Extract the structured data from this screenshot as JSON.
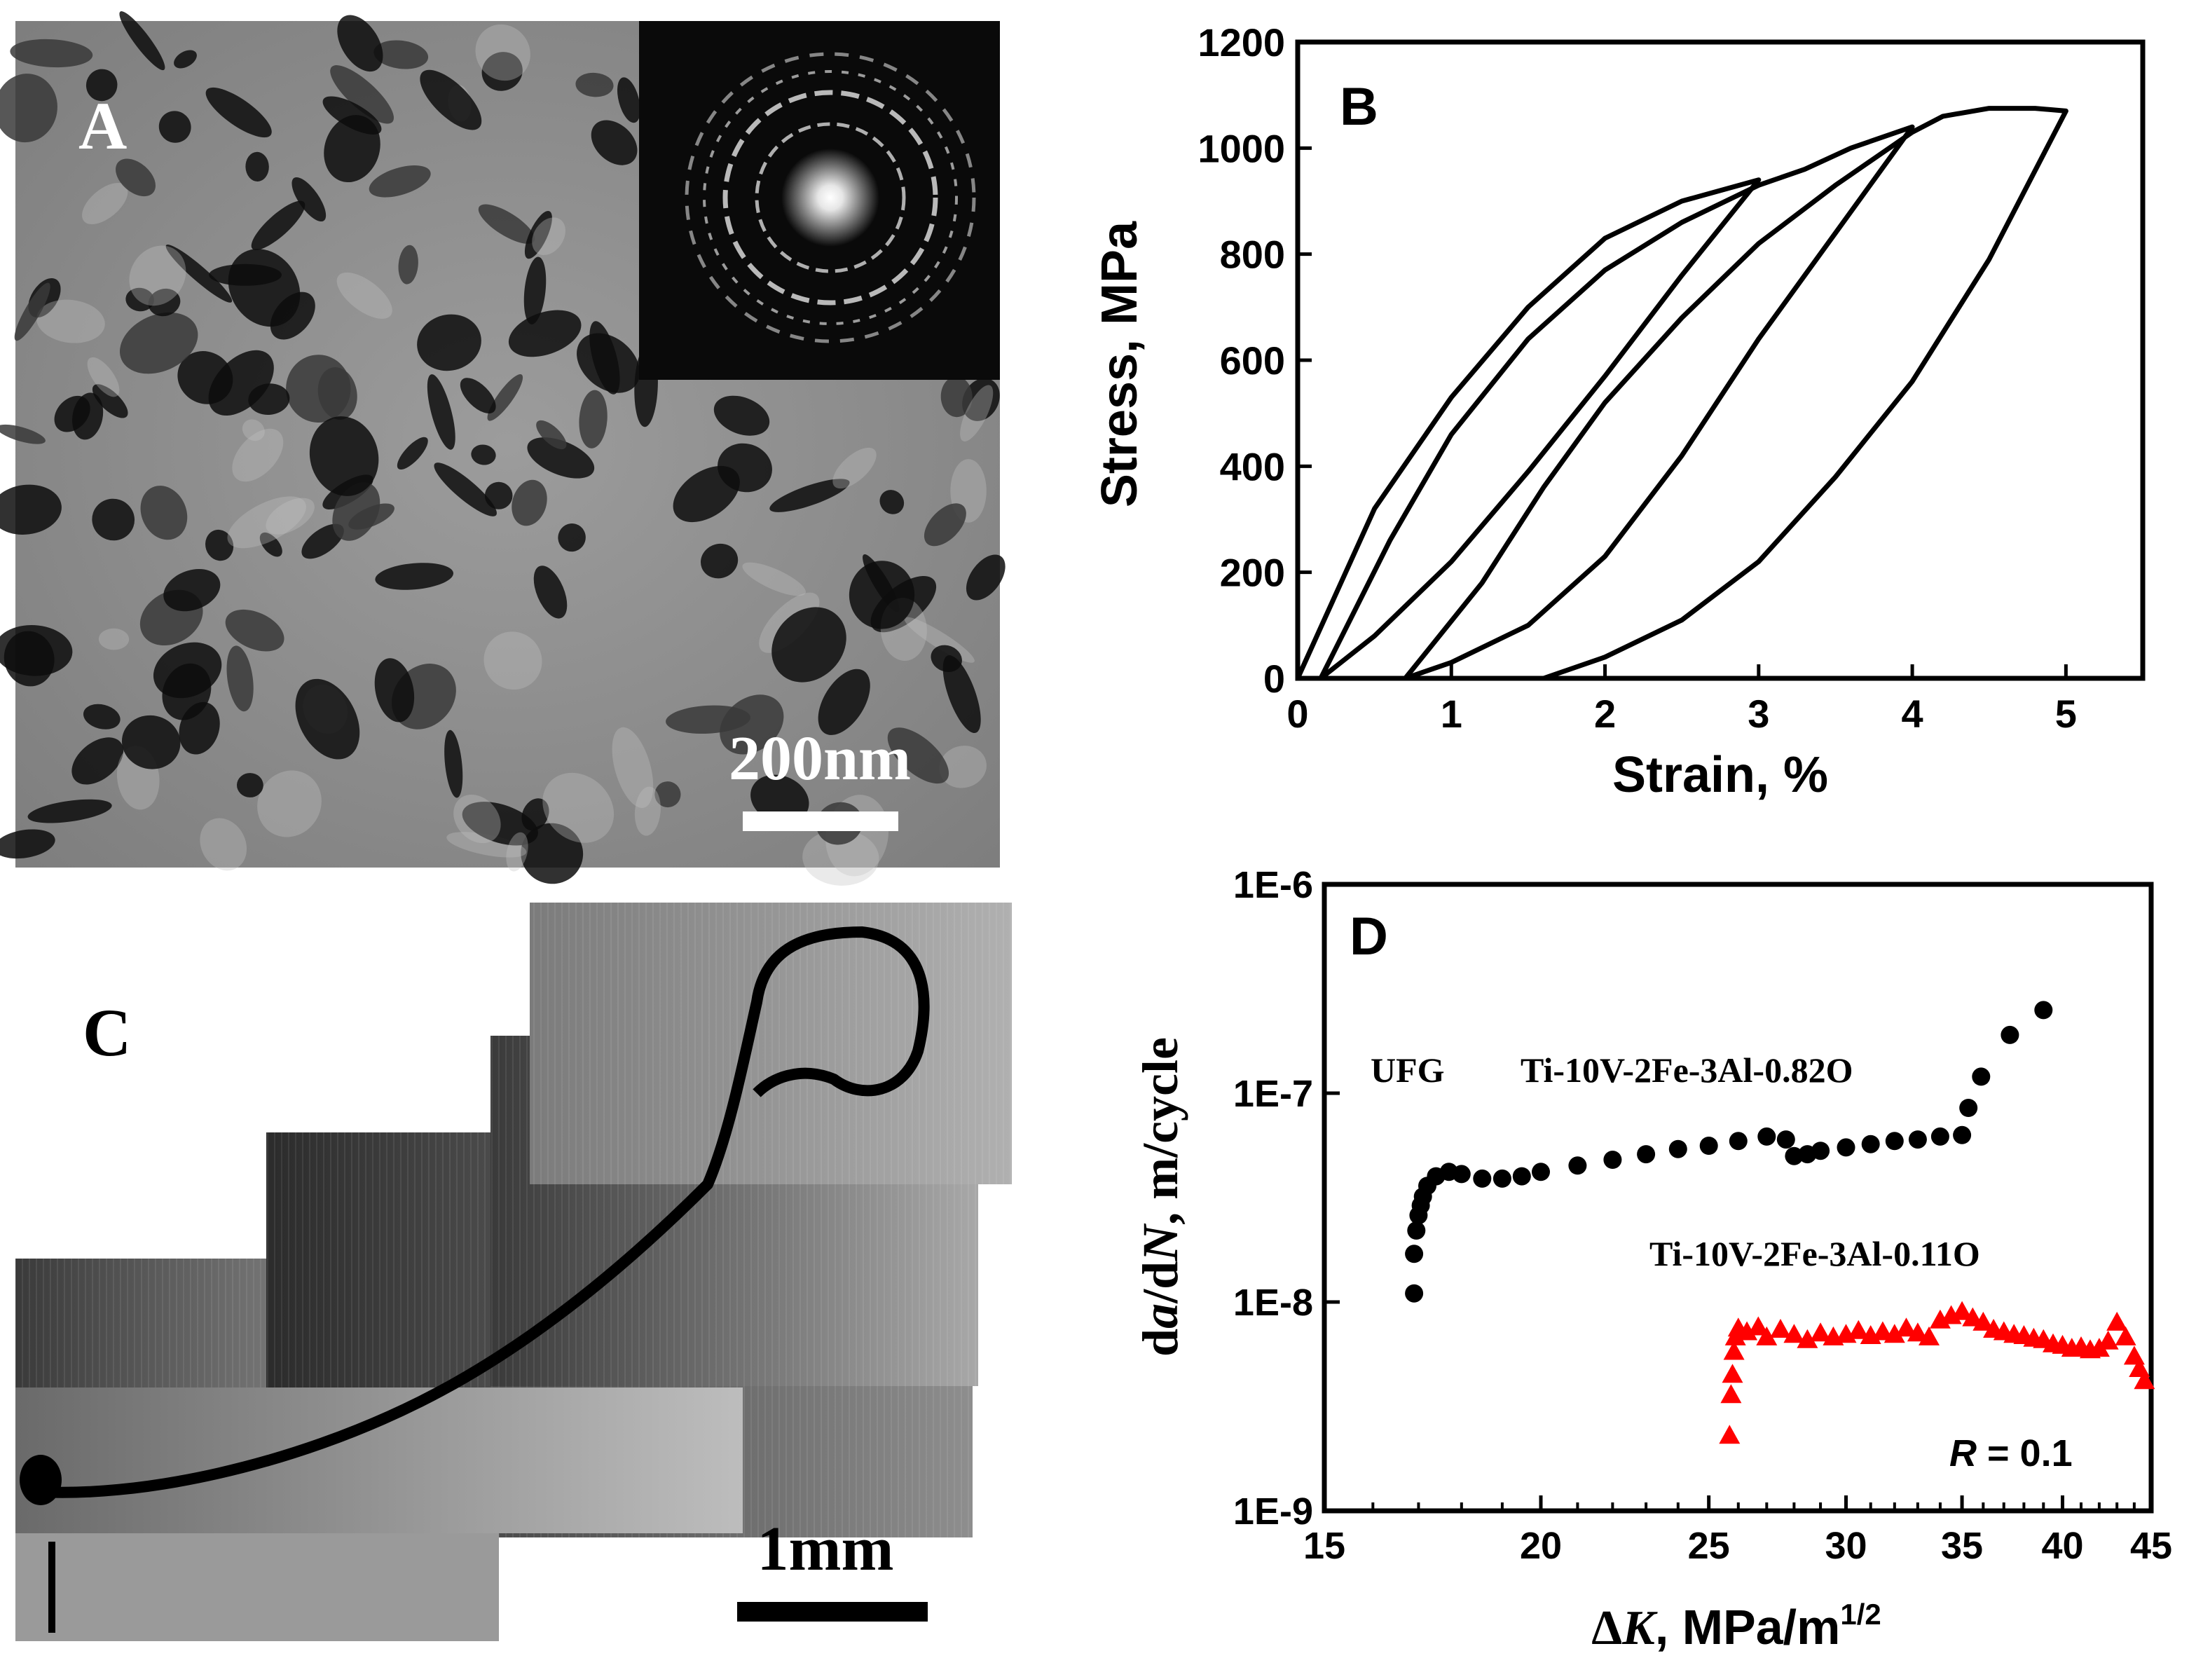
{
  "panels": {
    "A": {
      "label": "A",
      "scale_bar_label": "200nm",
      "image_kind": "TEM micrograph with inset diffraction pattern"
    },
    "C": {
      "label": "C",
      "scale_bar_label": "1mm",
      "image_kind": "stitched optical micrograph of fatigue crack"
    },
    "B": {
      "label": "B"
    },
    "D": {
      "label": "D"
    }
  },
  "chart_data": [
    {
      "panel": "B",
      "type": "line",
      "title": "",
      "xlabel": "Strain, %",
      "ylabel": "Stress, MPa",
      "xlim": [
        0,
        5.5
      ],
      "ylim": [
        0,
        1200
      ],
      "xticks": [
        0,
        1,
        2,
        3,
        4,
        5
      ],
      "yticks": [
        0,
        200,
        400,
        600,
        800,
        1000,
        1200
      ],
      "grid": false,
      "series": [
        {
          "values": [
            [
              0,
              0
            ],
            [
              0.5,
              320
            ],
            [
              1,
              530
            ],
            [
              1.5,
              700
            ],
            [
              2,
              830
            ],
            [
              2.5,
              900
            ],
            [
              3,
              940
            ],
            [
              2.5,
              760
            ],
            [
              2,
              570
            ],
            [
              1.5,
              390
            ],
            [
              1,
              220
            ],
            [
              0.5,
              80
            ],
            [
              0.15,
              0
            ]
          ]
        },
        {
          "values": [
            [
              0.15,
              0
            ],
            [
              0.6,
              260
            ],
            [
              1,
              460
            ],
            [
              1.5,
              640
            ],
            [
              2,
              770
            ],
            [
              2.5,
              860
            ],
            [
              3,
              930
            ],
            [
              3.3,
              960
            ],
            [
              3.6,
              1000
            ],
            [
              4,
              1040
            ],
            [
              3.5,
              840
            ],
            [
              3,
              640
            ],
            [
              2.5,
              420
            ],
            [
              2,
              230
            ],
            [
              1.5,
              100
            ],
            [
              1,
              30
            ],
            [
              0.7,
              0
            ]
          ]
        },
        {
          "values": [
            [
              0.7,
              0
            ],
            [
              1.2,
              180
            ],
            [
              1.6,
              360
            ],
            [
              2,
              520
            ],
            [
              2.5,
              680
            ],
            [
              3,
              820
            ],
            [
              3.5,
              930
            ],
            [
              4,
              1030
            ],
            [
              4.2,
              1060
            ],
            [
              4.5,
              1075
            ],
            [
              4.8,
              1075
            ],
            [
              5,
              1070
            ],
            [
              4.5,
              790
            ],
            [
              4,
              560
            ],
            [
              3.5,
              380
            ],
            [
              3,
              220
            ],
            [
              2.5,
              110
            ],
            [
              2,
              40
            ],
            [
              1.6,
              0
            ]
          ]
        }
      ]
    },
    {
      "panel": "D",
      "type": "scatter",
      "title": "",
      "xlabel_prefix": "Δ",
      "xlabel_var": "K",
      "xlabel_unit": ", MPa/m",
      "xlabel_sup": "1/2",
      "ylabel_prefix": "d",
      "ylabel_var1": "a",
      "ylabel_mid": "/d",
      "ylabel_var2": "N",
      "ylabel_unit": ", m/cycle",
      "x_scale": "log",
      "y_scale": "log",
      "xlim": [
        15,
        45
      ],
      "ylim": [
        1e-09,
        1e-06
      ],
      "xticks": [
        15,
        20,
        25,
        30,
        35,
        40,
        45
      ],
      "ytick_labels": [
        "1E-9",
        "1E-8",
        "1E-7",
        "1E-6"
      ],
      "grid": false,
      "annotations": {
        "ufg": "UFG",
        "series1_label": "Ti-10V-2Fe-3Al-0.82O",
        "series2_label": "Ti-10V-2Fe-3Al-0.11O",
        "r_var": "R",
        "r_value": " = 0.1"
      },
      "series": [
        {
          "name": "Ti-10V-2Fe-3Al-0.82O",
          "marker": "circle",
          "color": "#000000",
          "x": [
            16.9,
            16.9,
            16.95,
            17.0,
            17.05,
            17.1,
            17.2,
            17.4,
            17.7,
            18.0,
            18.5,
            19.0,
            19.5,
            20.0,
            21,
            22,
            23,
            24,
            25,
            26,
            27,
            27.7,
            28.0,
            28.5,
            29,
            30,
            31,
            32,
            33,
            34,
            35.0,
            35.3,
            35.9,
            37.3,
            39.0
          ],
          "y": [
            1.1e-08,
            1.7e-08,
            2.2e-08,
            2.6e-08,
            2.9e-08,
            3.2e-08,
            3.6e-08,
            4e-08,
            4.2e-08,
            4.1e-08,
            3.9e-08,
            3.9e-08,
            4e-08,
            4.2e-08,
            4.5e-08,
            4.8e-08,
            5.1e-08,
            5.4e-08,
            5.6e-08,
            5.9e-08,
            6.2e-08,
            6e-08,
            5e-08,
            5.1e-08,
            5.3e-08,
            5.5e-08,
            5.7e-08,
            5.9e-08,
            6e-08,
            6.2e-08,
            6.3e-08,
            8.5e-08,
            1.2e-07,
            1.9e-07,
            2.5e-07
          ]
        },
        {
          "name": "Ti-10V-2Fe-3Al-0.11O",
          "marker": "triangle",
          "color": "#ff0000",
          "x": [
            25.7,
            25.75,
            25.8,
            25.85,
            25.9,
            26.0,
            26.3,
            26.7,
            27,
            27.5,
            28,
            28.5,
            29,
            29.5,
            30,
            30.5,
            31,
            31.5,
            32,
            32.5,
            33,
            33.5,
            34,
            34.5,
            35,
            35.5,
            36,
            36.5,
            37,
            37.5,
            38,
            38.5,
            39,
            39.5,
            40,
            40.5,
            41,
            41.5,
            42,
            42.5,
            43,
            43.5,
            44,
            44.3,
            44.6
          ],
          "y": [
            2.3e-09,
            3.6e-09,
            4.5e-09,
            5.8e-09,
            6.8e-09,
            7.5e-09,
            7.2e-09,
            7.6e-09,
            6.8e-09,
            7.4e-09,
            7e-09,
            6.6e-09,
            7.1e-09,
            6.8e-09,
            7e-09,
            7.3e-09,
            6.9e-09,
            7.2e-09,
            7e-09,
            7.5e-09,
            7.1e-09,
            6.8e-09,
            8.2e-09,
            8.6e-09,
            9e-09,
            8.4e-09,
            8e-09,
            7.4e-09,
            7.2e-09,
            7e-09,
            6.9e-09,
            6.7e-09,
            6.6e-09,
            6.3e-09,
            6.2e-09,
            6e-09,
            6.1e-09,
            5.9e-09,
            6e-09,
            6.5e-09,
            8e-09,
            6.8e-09,
            5.5e-09,
            4.8e-09,
            4.2e-09
          ]
        }
      ]
    }
  ]
}
